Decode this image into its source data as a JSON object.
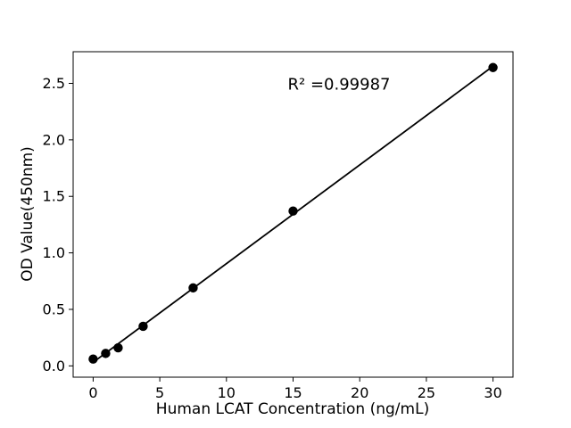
{
  "figure": {
    "background": "#ffffff",
    "frame_color": "#000000"
  },
  "chart_data": {
    "type": "scatter",
    "title": "",
    "xlabel": "Human LCAT Concentration (ng/mL)",
    "ylabel": "OD Value(450nm)",
    "x": [
      0,
      0.938,
      1.875,
      3.75,
      7.5,
      15,
      30
    ],
    "y": [
      0.06,
      0.11,
      0.16,
      0.35,
      0.69,
      1.37,
      2.64
    ],
    "fit_line": true,
    "r_squared": 0.99987,
    "r_squared_label": "R² =0.99987",
    "xticks": [
      "0",
      "5",
      "10",
      "15",
      "20",
      "25",
      "30"
    ],
    "xtick_values": [
      0,
      5,
      10,
      15,
      20,
      25,
      30
    ],
    "yticks": [
      "0.0",
      "0.5",
      "1.0",
      "1.5",
      "2.0",
      "2.5"
    ],
    "ytick_values": [
      0.0,
      0.5,
      1.0,
      1.5,
      2.0,
      2.5
    ],
    "xlim": [
      -1.5,
      31.5
    ],
    "ylim": [
      -0.1,
      2.78
    ],
    "grid": false,
    "legend": null,
    "marker_color": "#000000",
    "line_color": "#000000"
  }
}
